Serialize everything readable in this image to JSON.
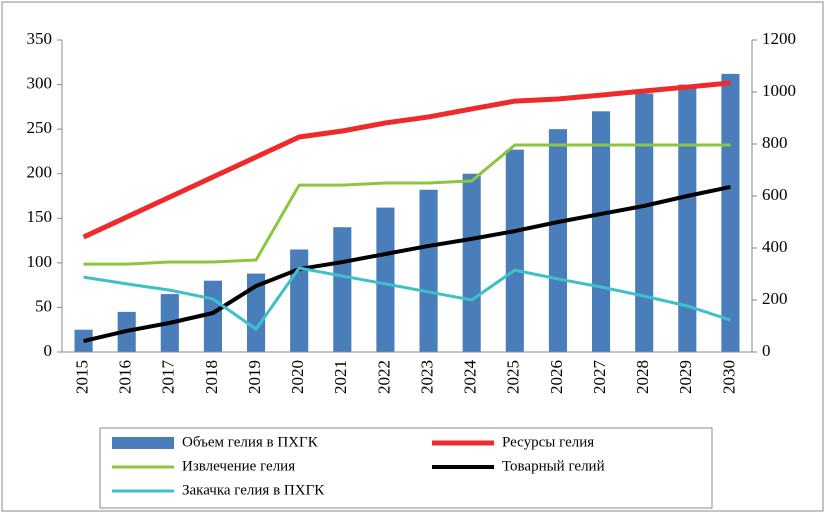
{
  "chart_data": {
    "type": "bar",
    "categories": [
      "2015",
      "2016",
      "2017",
      "2018",
      "2019",
      "2020",
      "2021",
      "2022",
      "2023",
      "2024",
      "2025",
      "2026",
      "2027",
      "2028",
      "2029",
      "2030"
    ],
    "series": [
      {
        "name": "Объем гелия в ПХГК",
        "type": "bar",
        "color": "#4a7ebb",
        "values": [
          25,
          45,
          65,
          80,
          88,
          115,
          140,
          162,
          182,
          200,
          227,
          250,
          270,
          290,
          300,
          312
        ]
      },
      {
        "name": "Ресурсы гелия",
        "type": "line",
        "axis": "y2",
        "color": "#ee2a2a",
        "values": [
          442,
          519,
          596,
          673,
          750,
          827,
          850,
          881,
          904,
          935,
          965,
          973,
          988,
          1004,
          1019,
          1035
        ]
      },
      {
        "name": "Извлечение гелия",
        "type": "line",
        "axis": "y2",
        "color": "#8cc63f",
        "values": [
          338,
          338,
          346,
          346,
          354,
          642,
          642,
          650,
          650,
          658,
          796,
          796,
          796,
          796,
          796,
          796
        ]
      },
      {
        "name": "Товарный гелий",
        "type": "line",
        "axis": "y2",
        "color": "#000000",
        "values": [
          42,
          81,
          112,
          150,
          254,
          319,
          346,
          377,
          408,
          435,
          465,
          500,
          531,
          562,
          600,
          635
        ]
      },
      {
        "name": "Закачка гелия в ПХГК",
        "type": "line",
        "axis": "y2",
        "color": "#3ec0c8",
        "values": [
          288,
          262,
          238,
          204,
          88,
          323,
          292,
          262,
          231,
          200,
          315,
          281,
          250,
          215,
          177,
          123
        ]
      }
    ],
    "ylim": [
      0,
      350
    ],
    "yticks": [
      0,
      50,
      100,
      150,
      200,
      250,
      300,
      350
    ],
    "y2lim": [
      0,
      1200
    ],
    "y2ticks": [
      0,
      200,
      400,
      600,
      800,
      1000,
      1200
    ],
    "legend": "bottom"
  }
}
